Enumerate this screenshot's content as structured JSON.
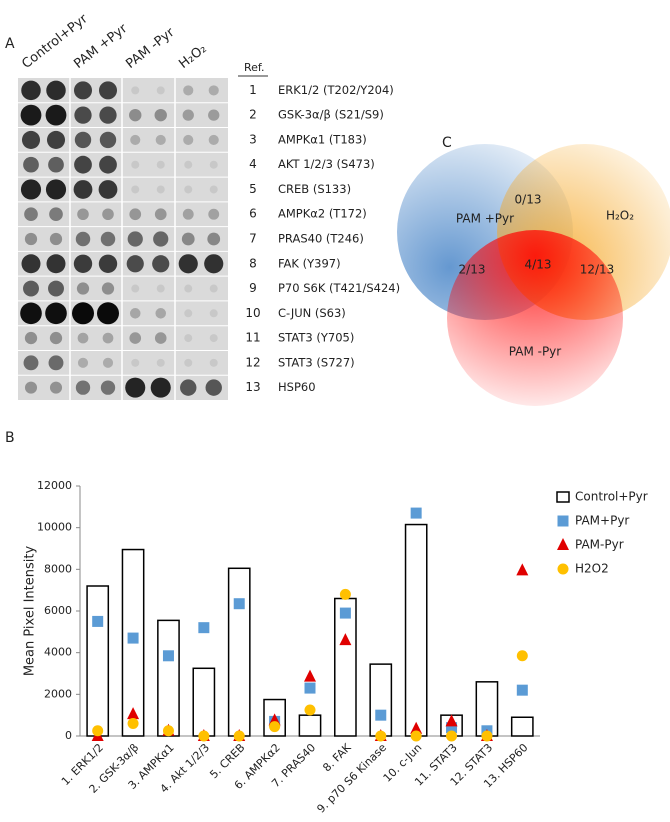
{
  "panel_labels": [
    "A",
    "B",
    "C"
  ],
  "blot": {
    "columns": [
      {
        "name": "Control+Pyr",
        "color": "#000000"
      },
      {
        "name": "PAM +Pyr",
        "color": "#4a7fc1"
      },
      {
        "name": "PAM -Pyr",
        "color": "#e8000b"
      },
      {
        "name": "H₂O₂",
        "color": "#a07a1a"
      }
    ],
    "ref_header": "Ref.",
    "rows": [
      {
        "ref": 1,
        "label": "ERK1/2 (T202/Y204)"
      },
      {
        "ref": 2,
        "label": "GSK-3α/β (S21/S9)"
      },
      {
        "ref": 3,
        "label": "AMPKα1 (T183)"
      },
      {
        "ref": 4,
        "label": "AKT 1/2/3 (S473)"
      },
      {
        "ref": 5,
        "label": "CREB (S133)"
      },
      {
        "ref": 6,
        "label": "AMPKα2 (T172)"
      },
      {
        "ref": 7,
        "label": "PRAS40 (T246)"
      },
      {
        "ref": 8,
        "label": "FAK (Y397)"
      },
      {
        "ref": 9,
        "label": "P70 S6K (T421/S424)"
      },
      {
        "ref": 10,
        "label": "C-JUN (S63)"
      },
      {
        "ref": 11,
        "label": "STAT3 (Y705)"
      },
      {
        "ref": 12,
        "label": "STAT3 (S727)"
      },
      {
        "ref": 13,
        "label": "HSP60"
      }
    ]
  },
  "venn": {
    "sets": [
      {
        "name": "PAM +Pyr",
        "color": "#4a86c8"
      },
      {
        "name": "H₂O₂",
        "color": "#f5a623"
      },
      {
        "name": "PAM -Pyr",
        "color": "#ff0000"
      }
    ],
    "regions": [
      "0/13",
      "2/13",
      "4/13",
      "12/13"
    ]
  },
  "chart_data": {
    "type": "bar",
    "ylabel": "Mean Pixel Intensity",
    "categories": [
      "1. ERK1/2",
      "2. GSK-3α/β",
      "3. AMPKα1",
      "4. Akt 1/2/3",
      "5. CREB",
      "6. AMPKα2",
      "7. PRAS40",
      "8. FAK",
      "9. p70 S6 Kinase",
      "10. c-Jun",
      "11. STAT3",
      "12. STAT3",
      "13. HSP60"
    ],
    "series": [
      {
        "name": "Control+Pyr",
        "marker": "bar",
        "color": "#000000",
        "values": [
          7200,
          8950,
          5550,
          3250,
          8050,
          1750,
          1000,
          6600,
          3450,
          10150,
          1000,
          2600,
          900
        ]
      },
      {
        "name": "PAM+Pyr",
        "marker": "square",
        "color": "#5b9bd5",
        "values": [
          5500,
          4700,
          3850,
          5200,
          6350,
          700,
          2300,
          5900,
          1000,
          10700,
          400,
          250,
          2200
        ]
      },
      {
        "name": "PAM-Pyr",
        "marker": "triangle",
        "color": "#e00000",
        "values": [
          0,
          1050,
          250,
          0,
          0,
          750,
          2850,
          4600,
          0,
          350,
          700,
          0,
          7950
        ]
      },
      {
        "name": "H2O2",
        "marker": "circle",
        "color": "#ffc000",
        "values": [
          250,
          600,
          250,
          0,
          0,
          450,
          1250,
          6800,
          0,
          0,
          0,
          0,
          3850
        ]
      }
    ],
    "ylim": [
      0,
      12000
    ],
    "yticks": [
      0,
      2000,
      4000,
      6000,
      8000,
      10000,
      12000
    ]
  }
}
